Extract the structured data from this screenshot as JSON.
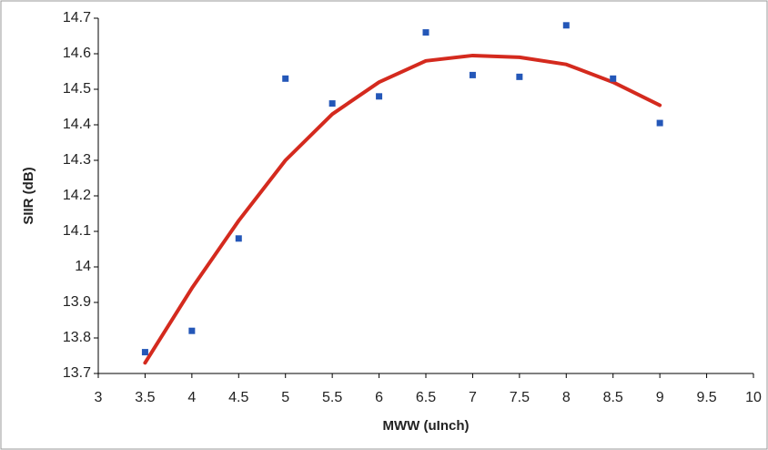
{
  "chart_data": {
    "type": "scatter",
    "x_label": "MWW (uInch)",
    "y_label": "SIIR (dB)",
    "x": [
      3.5,
      4,
      4.5,
      5,
      5.5,
      6,
      6.5,
      7,
      7.5,
      8,
      8.5,
      9
    ],
    "series": [
      {
        "mode": "markers",
        "color": "#2457b8",
        "values": [
          13.76,
          13.82,
          14.08,
          14.53,
          14.46,
          14.48,
          14.66,
          14.54,
          14.535,
          14.68,
          14.53,
          14.405
        ]
      },
      {
        "mode": "line",
        "color": "#d42a1e",
        "values": [
          13.73,
          13.94,
          14.13,
          14.3,
          14.43,
          14.52,
          14.58,
          14.595,
          14.59,
          14.57,
          14.52,
          14.455
        ]
      }
    ],
    "xlim": [
      3,
      10
    ],
    "xticks": [
      3,
      3.5,
      4,
      4.5,
      5,
      5.5,
      6,
      6.5,
      7,
      7.5,
      8,
      8.5,
      9,
      9.5,
      10
    ],
    "ylim": [
      13.7,
      14.7
    ],
    "yticks": [
      13.7,
      13.8,
      13.9,
      14,
      14.1,
      14.2,
      14.3,
      14.4,
      14.5,
      14.6,
      14.7
    ],
    "grid": false
  }
}
